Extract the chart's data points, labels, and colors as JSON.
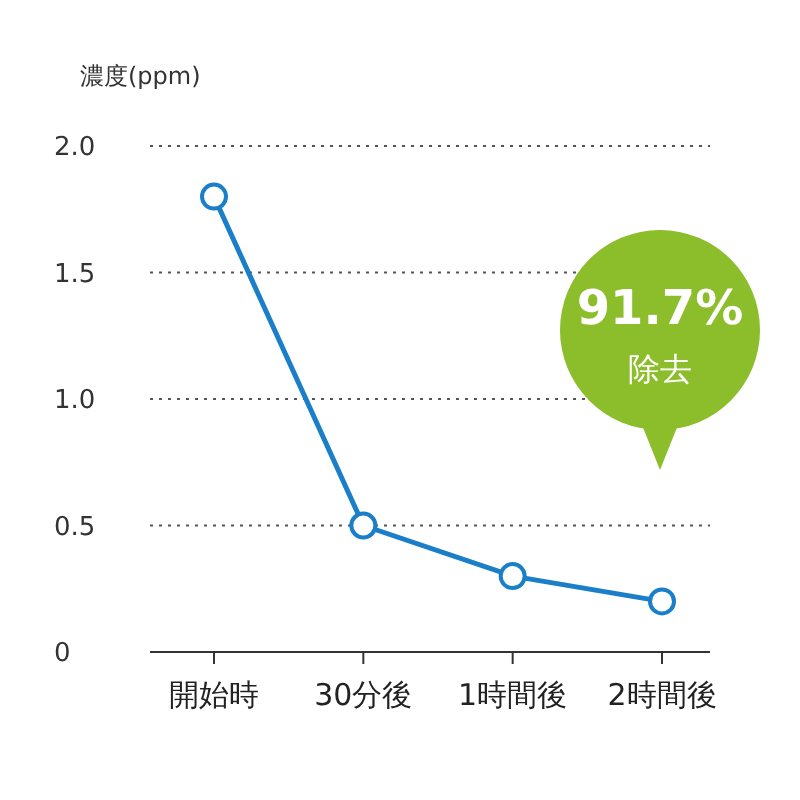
{
  "chart_data": {
    "type": "line",
    "ylabel": "濃度(ppm)",
    "categories": [
      "開始時",
      "30分後",
      "1時間後",
      "2時間後"
    ],
    "series": [
      {
        "color": "#1a7fc8",
        "values": [
          1.8,
          0.5,
          0.3,
          0.2
        ]
      }
    ],
    "ylim": [
      0,
      2
    ],
    "yticks": [
      0,
      0.5,
      {
        "value": 1,
        "label": "1.0"
      },
      1.5,
      {
        "value": 2,
        "label": "2.0"
      }
    ],
    "grid": "y",
    "marker": "circle",
    "line_style": "solid",
    "annotations": [
      "91.7%",
      "除去"
    ]
  }
}
